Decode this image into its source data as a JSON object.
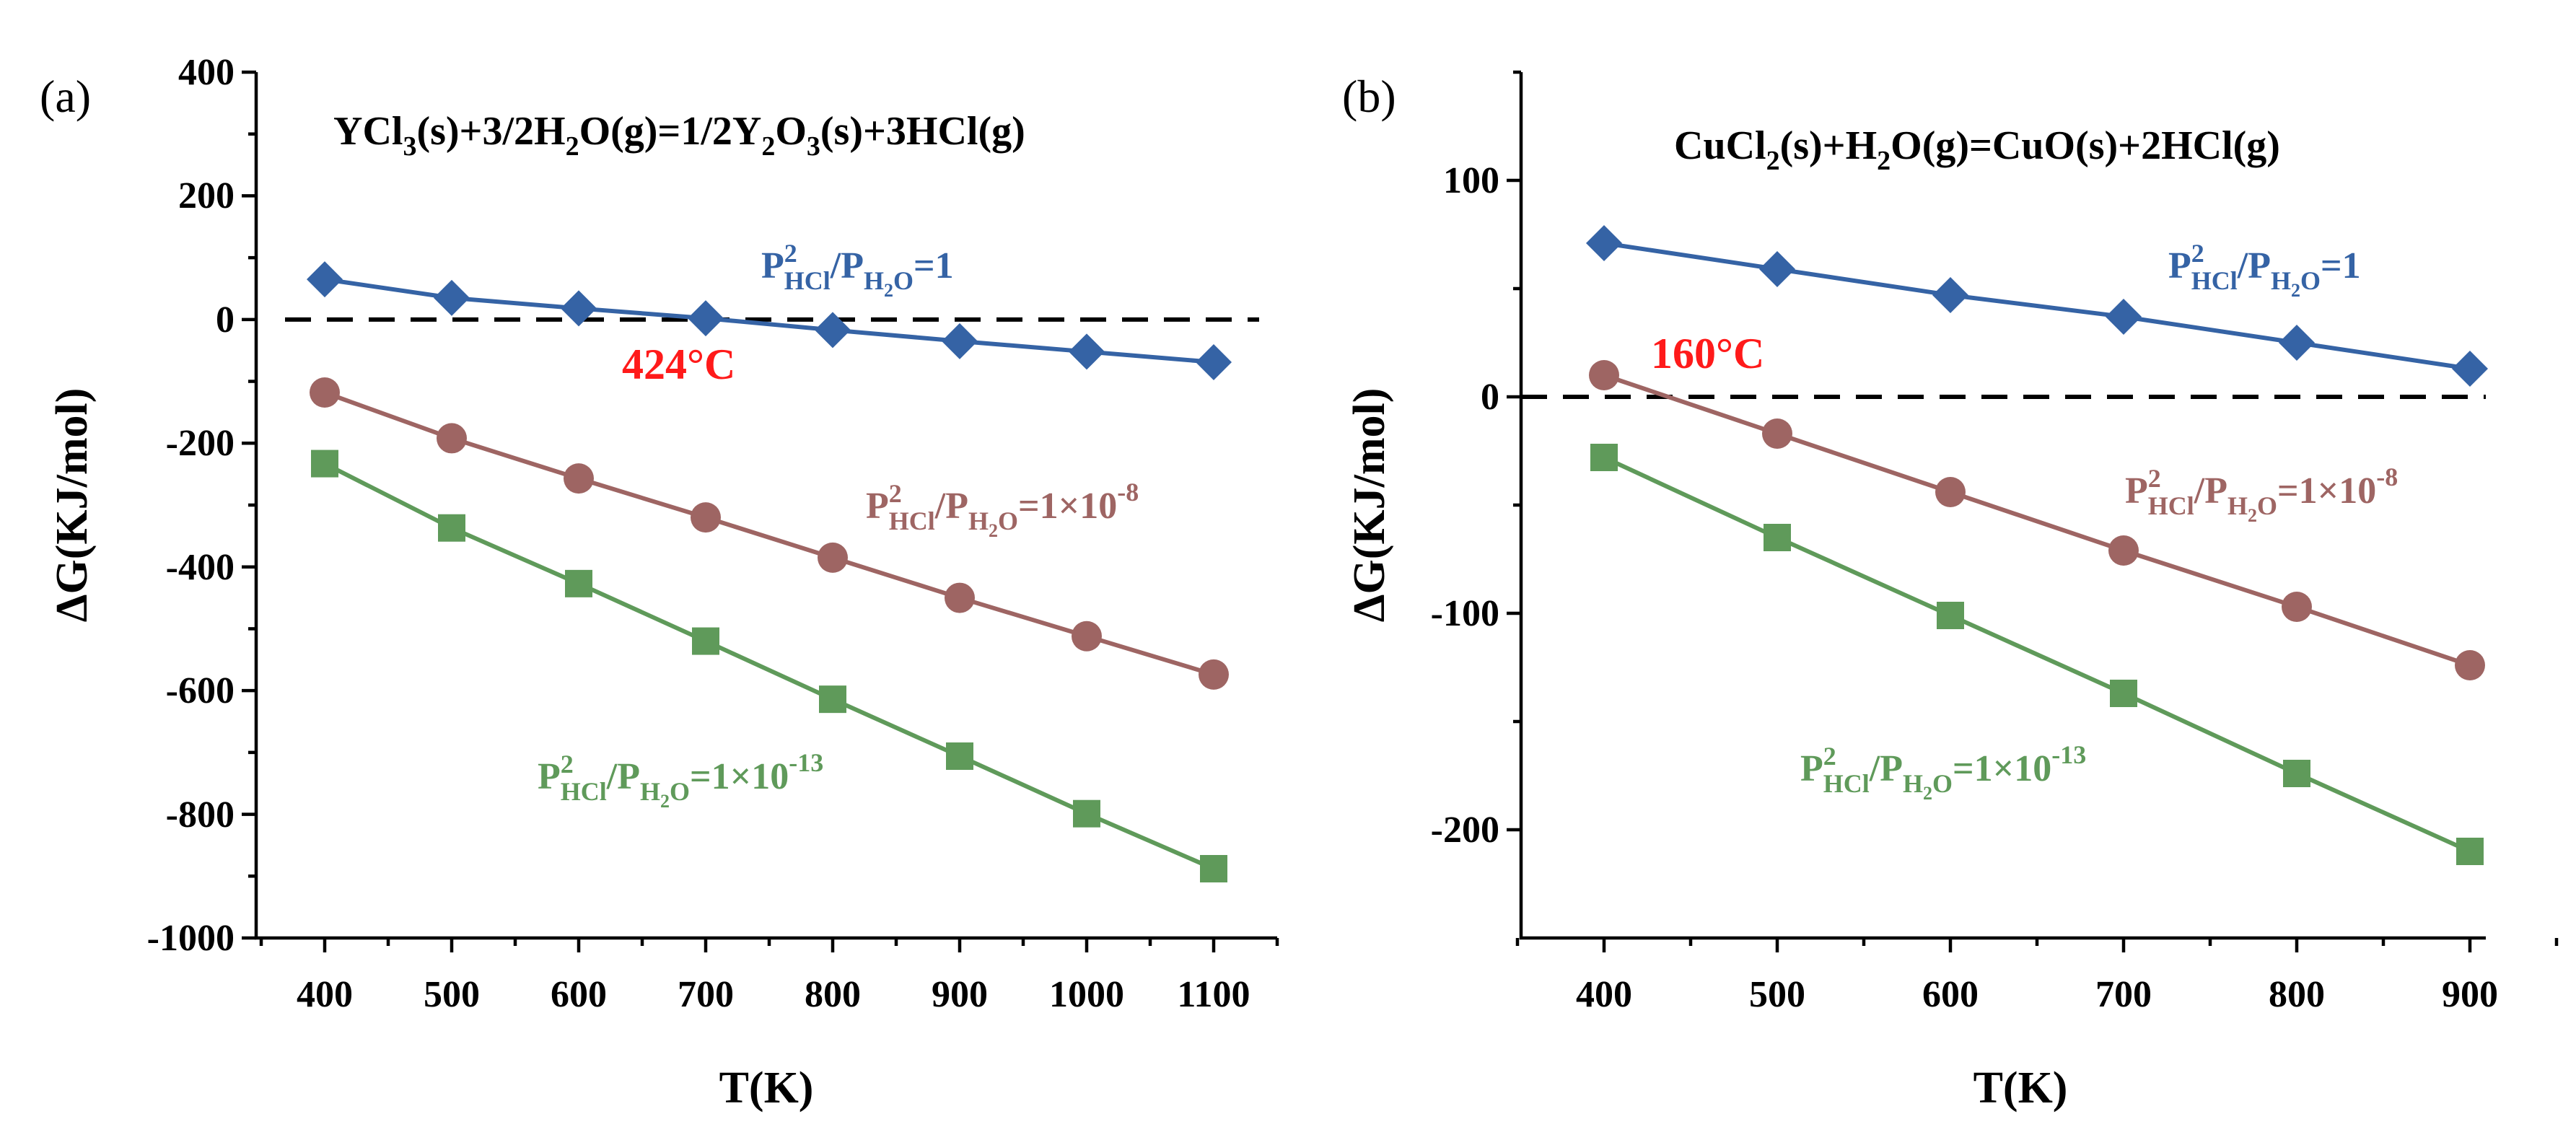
{
  "chart_data": [
    {
      "panel_label": "(a)",
      "type": "line",
      "title_parts": [
        "YCl",
        "3",
        "(s)+3/2H",
        "2",
        "O(g)=1/2Y",
        "2",
        "O",
        "3",
        "(s)+3HCl(g)"
      ],
      "xlabel": "T(K)",
      "ylabel": "ΔG(KJ/mol)",
      "x": [
        400,
        500,
        600,
        700,
        800,
        900,
        1000,
        1100
      ],
      "xticks": [
        "400",
        "500",
        "600",
        "700",
        "800",
        "900",
        "1000",
        "1100"
      ],
      "xlim": [
        350,
        1150
      ],
      "ylim": [
        -1000,
        400
      ],
      "yticks": [
        "400",
        "200",
        "0",
        "-200",
        "-400",
        "-600",
        "-800",
        "-1000"
      ],
      "reference_line_y": 0,
      "annotation": "424°C",
      "series": [
        {
          "name_parts": [
            "P",
            "2",
            "HCl",
            "/P",
            "H",
            "2",
            "O",
            "=1"
          ],
          "color": "#3563a5",
          "marker": "diamond",
          "values": [
            65,
            35,
            18,
            2,
            -17,
            -35,
            -52,
            -69
          ]
        },
        {
          "name_parts": [
            "P",
            "2",
            "HCl",
            "/P",
            "H",
            "2",
            "O",
            "=1×10",
            "-8"
          ],
          "color": "#9e6563",
          "marker": "circle",
          "values": [
            -118,
            -192,
            -257,
            -320,
            -385,
            -450,
            -512,
            -574
          ]
        },
        {
          "name_parts": [
            "P",
            "2",
            "HCl",
            "/P",
            "H",
            "2",
            "O",
            "=1×10",
            "-13"
          ],
          "color": "#5f9a5a",
          "marker": "square",
          "values": [
            -233,
            -337,
            -427,
            -520,
            -614,
            -706,
            -799,
            -888
          ]
        }
      ]
    },
    {
      "panel_label": "(b)",
      "type": "line",
      "title_parts": [
        "CuCl",
        "2",
        "(s)+H",
        "2",
        "O(g)=CuO(s)+2HCl(g)"
      ],
      "xlabel": "T(K)",
      "ylabel": "ΔG(KJ/mol)",
      "x": [
        400,
        500,
        600,
        700,
        800,
        900
      ],
      "xticks": [
        "400",
        "500",
        "600",
        "700",
        "800",
        "900"
      ],
      "xlim": [
        350,
        950
      ],
      "ylim": [
        -250,
        150
      ],
      "yticks": [
        "100",
        "0",
        "-100",
        "-200"
      ],
      "reference_line_y": 0,
      "annotation": "160°C",
      "series": [
        {
          "name_parts": [
            "P",
            "2",
            "HCl",
            "/P",
            "H",
            "2",
            "O",
            "=1"
          ],
          "color": "#3563a5",
          "marker": "diamond",
          "values": [
            71,
            59,
            47,
            37,
            25,
            13
          ]
        },
        {
          "name_parts": [
            "P",
            "2",
            "HCl",
            "/P",
            "H",
            "2",
            "O",
            "=1×10",
            "-8"
          ],
          "color": "#9e6563",
          "marker": "circle",
          "values": [
            10,
            -17,
            -44,
            -71,
            -97,
            -124
          ]
        },
        {
          "name_parts": [
            "P",
            "2",
            "HCl",
            "/P",
            "H",
            "2",
            "O",
            "=1×10",
            "-13"
          ],
          "color": "#5f9a5a",
          "marker": "square",
          "values": [
            -28,
            -65,
            -101,
            -137,
            -174,
            -210
          ]
        }
      ]
    }
  ],
  "colors": {
    "annotation": "#ff1a1a",
    "reference_line": "#000000"
  }
}
